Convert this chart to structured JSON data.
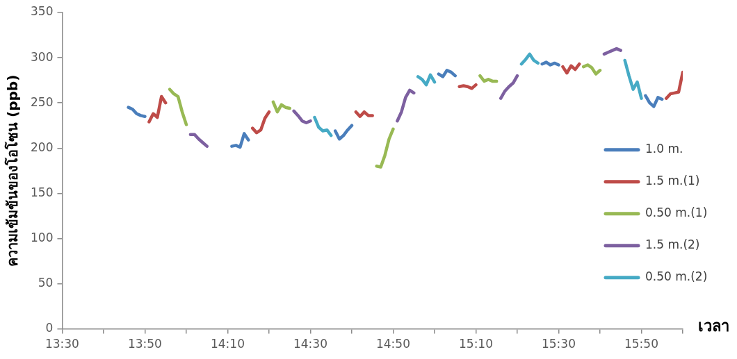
{
  "chart_data": {
    "type": "line",
    "xlabel": "เวลา",
    "ylabel": "ความเข้มข้นของโอโซน (ppb)",
    "xlim": [
      13.5,
      16
    ],
    "ylim": [
      0,
      350
    ],
    "yticks": [
      0,
      50,
      100,
      150,
      200,
      250,
      300,
      350
    ],
    "xticks": [
      {
        "value": 13.5,
        "label": "13:30"
      },
      {
        "value": 13.6667,
        "label": null
      },
      {
        "value": 13.8333,
        "label": "13:50"
      },
      {
        "value": 14,
        "label": null
      },
      {
        "value": 14.1667,
        "label": "14:10"
      },
      {
        "value": 14.3333,
        "label": null
      },
      {
        "value": 14.5,
        "label": "14:30"
      },
      {
        "value": 14.6667,
        "label": null
      },
      {
        "value": 14.8333,
        "label": "14:50"
      },
      {
        "value": 15,
        "label": null
      },
      {
        "value": 15.1667,
        "label": "15:10"
      },
      {
        "value": 15.3333,
        "label": null
      },
      {
        "value": 15.5,
        "label": "15:30"
      },
      {
        "value": 15.6667,
        "label": null
      },
      {
        "value": 15.8333,
        "label": "15:50"
      },
      {
        "value": 16,
        "label": null
      }
    ],
    "grid": false,
    "legend": "right",
    "marker": "none",
    "line_style": "solid",
    "series": [
      {
        "name": "1.0 m.",
        "color": "#4a7ebb",
        "x": [
          13.7667,
          13.7833,
          13.8,
          13.8167,
          13.8333,
          14,
          14.1833,
          14.2,
          14.2167,
          14.2333,
          14.25,
          14.4167,
          14.6,
          14.6167,
          14.6333,
          14.65,
          14.6667,
          14.8333,
          15.0167,
          15.0333,
          15.05,
          15.0667,
          15.0833,
          15.25,
          15.4333,
          15.45,
          15.4667,
          15.4833,
          15.5,
          15.6667,
          15.85,
          15.8667,
          15.8833,
          15.9,
          15.9167
        ],
        "values": [
          245,
          243,
          238,
          236,
          235,
          null,
          202,
          203,
          201,
          216,
          209,
          null,
          219,
          210,
          214,
          220,
          225,
          null,
          282,
          279,
          286,
          284,
          280,
          null,
          293,
          295,
          292,
          294,
          292,
          null,
          258,
          250,
          246,
          256,
          254
        ]
      },
      {
        "name": "1.5 m.(1)",
        "color": "#be4b48",
        "x": [
          13.85,
          13.8667,
          13.8833,
          13.9,
          13.9167,
          14.0833,
          14.2667,
          14.2833,
          14.3,
          14.3167,
          14.3333,
          14.5,
          14.6833,
          14.7,
          14.7167,
          14.7333,
          14.75,
          14.9167,
          15.1,
          15.1167,
          15.1333,
          15.15,
          15.1667,
          15.3333,
          15.5167,
          15.5333,
          15.55,
          15.5667,
          15.5833,
          15.75,
          15.9333,
          15.95,
          15.9667,
          15.9833,
          16
        ],
        "values": [
          229,
          238,
          234,
          257,
          250,
          null,
          222,
          217,
          220,
          233,
          240,
          null,
          240,
          235,
          240,
          236,
          236,
          null,
          268,
          269,
          268,
          266,
          270,
          null,
          290,
          283,
          291,
          287,
          293,
          null,
          255,
          260,
          261,
          262,
          284
        ]
      },
      {
        "name": "0.50 m.(1)",
        "color": "#98b954",
        "x": [
          13.9333,
          13.95,
          13.9667,
          13.9833,
          14,
          14.1667,
          14.35,
          14.3667,
          14.3833,
          14.4,
          14.4167,
          14.5833,
          14.7667,
          14.7833,
          14.8,
          14.8167,
          14.8333,
          15,
          15.1833,
          15.2,
          15.2167,
          15.2333,
          15.25,
          15.4167,
          15.6,
          15.6167,
          15.6333,
          15.65,
          15.6667
        ],
        "values": [
          265,
          260,
          257,
          240,
          226,
          null,
          251,
          240,
          248,
          245,
          244,
          null,
          180,
          179,
          192,
          210,
          221,
          null,
          280,
          274,
          276,
          274,
          274,
          null,
          290,
          292,
          289,
          282,
          286
        ]
      },
      {
        "name": "1.5 m.(2)",
        "color": "#7d60a0",
        "x": [
          14.0167,
          14.0333,
          14.05,
          14.0667,
          14.0833,
          14.25,
          14.4333,
          14.45,
          14.4667,
          14.4833,
          14.5,
          14.6667,
          14.85,
          14.8667,
          14.8833,
          14.9,
          14.9167,
          15.0833,
          15.2667,
          15.2833,
          15.3,
          15.3167,
          15.3333,
          15.5,
          15.6833,
          15.7,
          15.7167,
          15.7333,
          15.75
        ],
        "values": [
          215,
          215,
          210,
          206,
          202,
          null,
          241,
          236,
          230,
          228,
          230,
          null,
          230,
          240,
          256,
          264,
          261,
          null,
          255,
          263,
          268,
          272,
          280,
          null,
          304,
          306,
          308,
          310,
          308
        ]
      },
      {
        "name": "0.50 m.(2)",
        "color": "#46aac5",
        "x": [
          14.5167,
          14.5333,
          14.55,
          14.5667,
          14.5833,
          14.75,
          14.9333,
          14.95,
          14.9667,
          14.9833,
          15,
          15.1667,
          15.35,
          15.3667,
          15.3833,
          15.4,
          15.4167,
          15.5833,
          15.7667,
          15.7833,
          15.8,
          15.8167,
          15.8333
        ],
        "values": [
          234,
          223,
          219,
          220,
          214,
          null,
          279,
          276,
          270,
          281,
          273,
          null,
          293,
          298,
          304,
          297,
          294,
          null,
          297,
          280,
          265,
          273,
          255
        ]
      }
    ]
  }
}
